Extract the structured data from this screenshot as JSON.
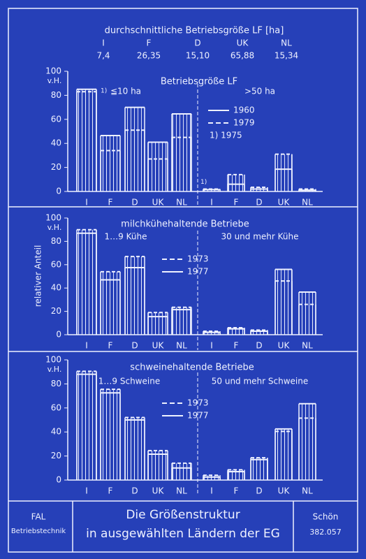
{
  "header": {
    "title": "durchschnittliche Betriebsgröße LF [ha]",
    "countries": [
      "I",
      "F",
      "D",
      "UK",
      "NL"
    ],
    "values": [
      "7,4",
      "26,35",
      "15,10",
      "65,88",
      "15,34"
    ]
  },
  "chart_data": [
    {
      "type": "bar",
      "title": "Betriebsgröße LF",
      "yunit": "v.H.",
      "group_labels": [
        "≦10 ha",
        ">50 ha"
      ],
      "categories": [
        "I",
        "F",
        "D",
        "UK",
        "NL",
        "I",
        "F",
        "D",
        "UK",
        "NL"
      ],
      "category_notes": [
        "1)",
        null,
        null,
        null,
        null,
        "1)",
        null,
        null,
        null,
        null
      ],
      "footnote": "1) 1975",
      "series": [
        {
          "name": "1960",
          "style": "solid",
          "color": "#eef1ff",
          "values": [
            85,
            46.5,
            70,
            41,
            64.5,
            1.5,
            6,
            2,
            18.5,
            1
          ]
        },
        {
          "name": "1979",
          "style": "dashed",
          "color": "#eef1ff",
          "values": [
            83,
            34,
            51,
            27,
            45,
            2,
            14,
            3.5,
            31,
            2
          ]
        }
      ],
      "ylim": [
        0,
        100
      ],
      "yticks": [
        0,
        20,
        40,
        60,
        80,
        100
      ]
    },
    {
      "type": "bar",
      "title": "milchkühehaltende Betriebe",
      "yunit": "v.H.",
      "ylabel": "relativer Anteil",
      "group_labels": [
        "1…9 Kühe",
        "30 und mehr Kühe"
      ],
      "categories": [
        "I",
        "F",
        "D",
        "UK",
        "NL",
        "I",
        "F",
        "D",
        "UK",
        "NL"
      ],
      "series": [
        {
          "name": "1973",
          "style": "dashed",
          "color": "#eef1ff",
          "values": [
            90,
            54,
            67,
            19,
            23.5,
            3,
            6,
            4,
            46,
            26
          ]
        },
        {
          "name": "1977",
          "style": "solid",
          "color": "#eef1ff",
          "values": [
            87,
            47,
            57.5,
            15.5,
            21.5,
            2,
            5,
            3,
            56,
            36.5
          ]
        }
      ],
      "ylim": [
        0,
        100
      ],
      "yticks": [
        0,
        20,
        40,
        60,
        80,
        100
      ]
    },
    {
      "type": "bar",
      "title": "schweinehaltende Betriebe",
      "yunit": "v.H.",
      "group_labels": [
        "1…9 Schweine",
        "50 und mehr Schweine"
      ],
      "categories": [
        "I",
        "F",
        "D",
        "UK",
        "NL",
        "I",
        "F",
        "D",
        "UK",
        "NL"
      ],
      "series": [
        {
          "name": "1973",
          "style": "dashed",
          "color": "#eef1ff",
          "values": [
            90.5,
            75.5,
            52,
            24.5,
            14,
            4,
            8.5,
            18.5,
            40.5,
            51.5
          ]
        },
        {
          "name": "1977",
          "style": "solid",
          "color": "#eef1ff",
          "values": [
            88,
            72.5,
            50,
            21.5,
            10,
            2.5,
            7,
            17,
            42.5,
            63.5
          ]
        }
      ],
      "ylim": [
        0,
        100
      ],
      "yticks": [
        0,
        20,
        40,
        60,
        80,
        100
      ]
    }
  ],
  "footer": {
    "institute": "FAL",
    "department": "Betriebstechnik",
    "title_line1": "Die Größenstruktur",
    "title_line2": "in ausgewählten Ländern der EG",
    "author": "Schön",
    "number": "382.057"
  }
}
